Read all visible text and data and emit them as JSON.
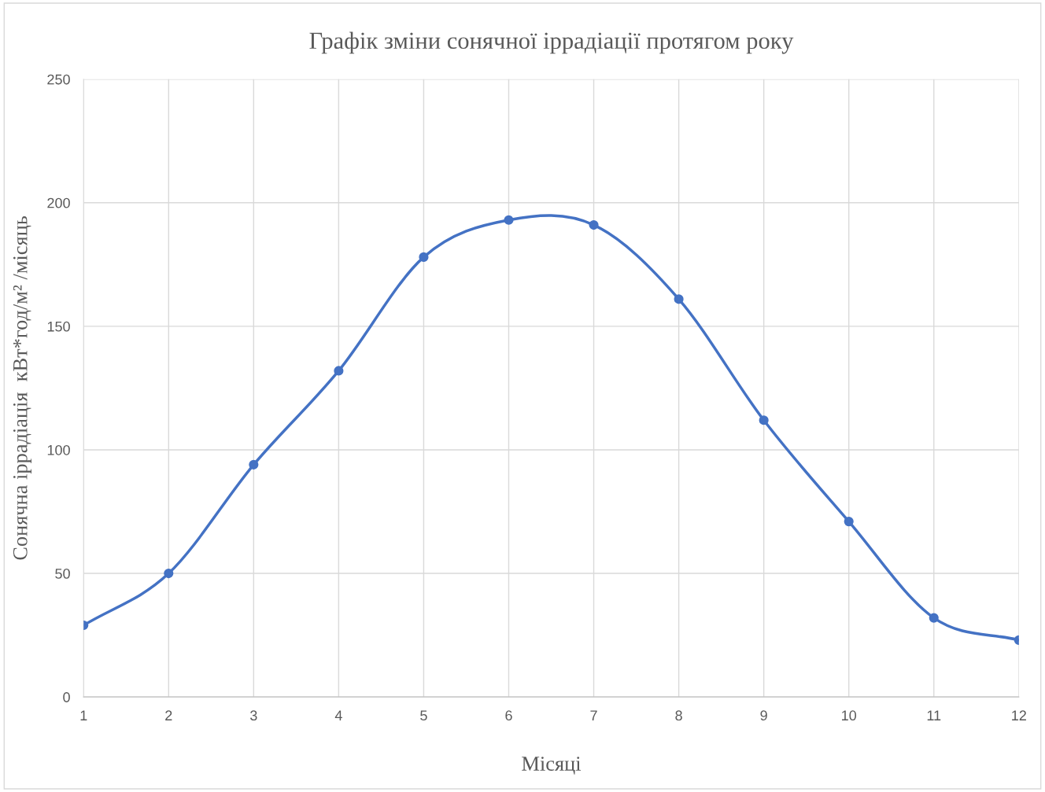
{
  "chart_data": {
    "type": "line",
    "title": "Графік зміни сонячної іррадіації протягом року",
    "xlabel": "Місяці",
    "ylabel": "Сонячна іррадіація  кВт*год/м² /місяць",
    "x": [
      1,
      2,
      3,
      4,
      5,
      6,
      7,
      8,
      9,
      10,
      11,
      12
    ],
    "series": [
      {
        "color": "#4472c4",
        "values": [
          29,
          50,
          94,
          132,
          178,
          193,
          191,
          161,
          112,
          71,
          32,
          23
        ]
      }
    ],
    "xlim": [
      1,
      12
    ],
    "xticks": [
      1,
      2,
      3,
      4,
      5,
      6,
      7,
      8,
      9,
      10,
      11,
      12
    ],
    "ylim": [
      0,
      250
    ],
    "yticks": [
      0,
      50,
      100,
      150,
      200,
      250
    ],
    "grid": true,
    "marker": "circle",
    "line_style": "solid",
    "legend": false
  }
}
